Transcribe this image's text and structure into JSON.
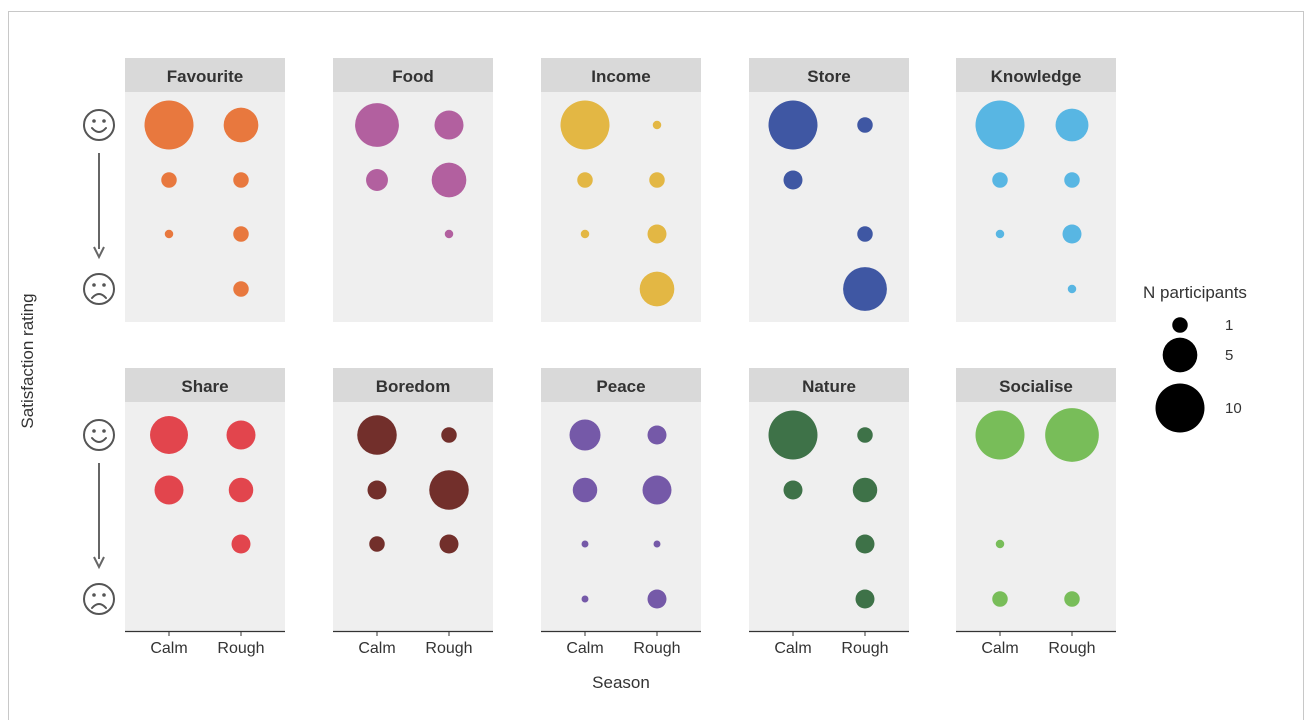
{
  "chart_data": {
    "type": "scatter",
    "subtype": "faceted bubble chart",
    "x_label": "Season",
    "y_label": "Satisfaction rating",
    "x_categories": [
      "Calm",
      "Rough"
    ],
    "y_levels": 4,
    "y_top_icon": "smiley-face-icon",
    "y_bottom_icon": "frowning-face-icon",
    "legend": {
      "title": "N participants",
      "sizes": [
        1,
        5,
        10
      ],
      "labels": [
        "1",
        "5",
        "10"
      ],
      "position": "right"
    },
    "facets": [
      {
        "name": "Favourite",
        "color": "#e8783e",
        "points": [
          {
            "x": "Calm",
            "level": 1,
            "n": 10
          },
          {
            "x": "Rough",
            "level": 1,
            "n": 5
          },
          {
            "x": "Calm",
            "level": 2,
            "n": 1
          },
          {
            "x": "Rough",
            "level": 2,
            "n": 1
          },
          {
            "x": "Calm",
            "level": 3,
            "n": 0.3
          },
          {
            "x": "Rough",
            "level": 3,
            "n": 1
          },
          {
            "x": "Rough",
            "level": 4,
            "n": 1
          }
        ]
      },
      {
        "name": "Food",
        "color": "#b2609f",
        "points": [
          {
            "x": "Calm",
            "level": 1,
            "n": 8
          },
          {
            "x": "Rough",
            "level": 1,
            "n": 3.5
          },
          {
            "x": "Calm",
            "level": 2,
            "n": 2
          },
          {
            "x": "Rough",
            "level": 2,
            "n": 5
          },
          {
            "x": "Rough",
            "level": 3,
            "n": 0.3
          }
        ]
      },
      {
        "name": "Income",
        "color": "#e3b744",
        "points": [
          {
            "x": "Calm",
            "level": 1,
            "n": 10
          },
          {
            "x": "Rough",
            "level": 1,
            "n": 0.3
          },
          {
            "x": "Calm",
            "level": 2,
            "n": 1
          },
          {
            "x": "Rough",
            "level": 2,
            "n": 1
          },
          {
            "x": "Calm",
            "level": 3,
            "n": 0.3
          },
          {
            "x": "Rough",
            "level": 3,
            "n": 1.5
          },
          {
            "x": "Rough",
            "level": 4,
            "n": 5
          }
        ]
      },
      {
        "name": "Store",
        "color": "#3f57a3",
        "points": [
          {
            "x": "Calm",
            "level": 1,
            "n": 10
          },
          {
            "x": "Rough",
            "level": 1,
            "n": 1
          },
          {
            "x": "Calm",
            "level": 2,
            "n": 1.5
          },
          {
            "x": "Rough",
            "level": 3,
            "n": 1
          },
          {
            "x": "Rough",
            "level": 4,
            "n": 8
          }
        ]
      },
      {
        "name": "Knowledge",
        "color": "#58b6e3",
        "points": [
          {
            "x": "Calm",
            "level": 1,
            "n": 10
          },
          {
            "x": "Rough",
            "level": 1,
            "n": 4.5
          },
          {
            "x": "Calm",
            "level": 2,
            "n": 1
          },
          {
            "x": "Rough",
            "level": 2,
            "n": 1
          },
          {
            "x": "Calm",
            "level": 3,
            "n": 0.3
          },
          {
            "x": "Rough",
            "level": 3,
            "n": 1.5
          },
          {
            "x": "Rough",
            "level": 4,
            "n": 0.3
          }
        ]
      },
      {
        "name": "Share",
        "color": "#e2454d",
        "points": [
          {
            "x": "Calm",
            "level": 1,
            "n": 6
          },
          {
            "x": "Rough",
            "level": 1,
            "n": 3.5
          },
          {
            "x": "Calm",
            "level": 2,
            "n": 3.5
          },
          {
            "x": "Rough",
            "level": 2,
            "n": 2.5
          },
          {
            "x": "Rough",
            "level": 3,
            "n": 1.5
          }
        ]
      },
      {
        "name": "Boredom",
        "color": "#722f2b",
        "points": [
          {
            "x": "Calm",
            "level": 1,
            "n": 6.5
          },
          {
            "x": "Rough",
            "level": 1,
            "n": 1
          },
          {
            "x": "Calm",
            "level": 2,
            "n": 1.5
          },
          {
            "x": "Rough",
            "level": 2,
            "n": 6.5
          },
          {
            "x": "Calm",
            "level": 3,
            "n": 1
          },
          {
            "x": "Rough",
            "level": 3,
            "n": 1.5
          }
        ]
      },
      {
        "name": "Peace",
        "color": "#7559a8",
        "points": [
          {
            "x": "Calm",
            "level": 1,
            "n": 4
          },
          {
            "x": "Rough",
            "level": 1,
            "n": 1.5
          },
          {
            "x": "Calm",
            "level": 2,
            "n": 2.5
          },
          {
            "x": "Rough",
            "level": 2,
            "n": 3.5
          },
          {
            "x": "Calm",
            "level": 3,
            "n": 0.2
          },
          {
            "x": "Rough",
            "level": 3,
            "n": 0.2
          },
          {
            "x": "Calm",
            "level": 4,
            "n": 0.2
          },
          {
            "x": "Rough",
            "level": 4,
            "n": 1.5
          }
        ]
      },
      {
        "name": "Nature",
        "color": "#3e7248",
        "points": [
          {
            "x": "Calm",
            "level": 1,
            "n": 10
          },
          {
            "x": "Rough",
            "level": 1,
            "n": 1
          },
          {
            "x": "Calm",
            "level": 2,
            "n": 1.5
          },
          {
            "x": "Rough",
            "level": 2,
            "n": 2.5
          },
          {
            "x": "Rough",
            "level": 3,
            "n": 1.5
          },
          {
            "x": "Rough",
            "level": 4,
            "n": 1.5
          }
        ]
      },
      {
        "name": "Socialise",
        "color": "#78bd59",
        "points": [
          {
            "x": "Calm",
            "level": 1,
            "n": 10
          },
          {
            "x": "Rough",
            "level": 1,
            "n": 12
          },
          {
            "x": "Calm",
            "level": 3,
            "n": 0.3
          },
          {
            "x": "Calm",
            "level": 4,
            "n": 1
          },
          {
            "x": "Rough",
            "level": 4,
            "n": 1
          }
        ]
      }
    ]
  }
}
